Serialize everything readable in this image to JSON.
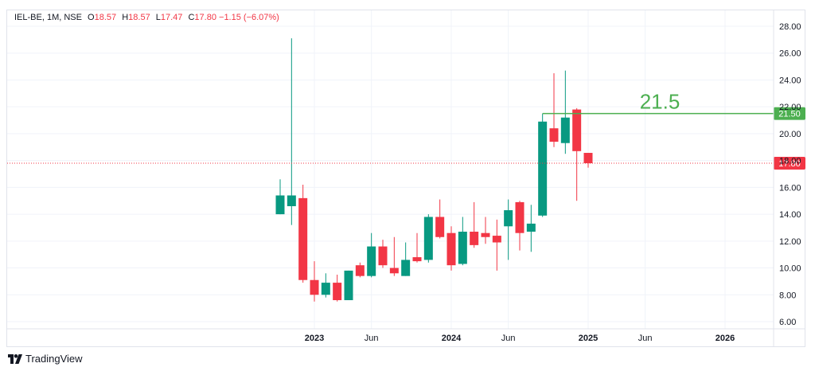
{
  "legend": {
    "symbol": "IEL-BE, 1M, NSE",
    "o_label": "O",
    "o_value": "18.57",
    "h_label": "H",
    "h_value": "18.57",
    "l_label": "L",
    "l_value": "17.47",
    "c_label": "C",
    "c_value": "17.80",
    "change": "−1.15 (−6.07%)"
  },
  "brand": {
    "name": "TradingView"
  },
  "colors": {
    "up": "#089981",
    "down": "#f23645",
    "hline": "#4caf50",
    "grid": "#f0f3fa",
    "price_line": "#f23645"
  },
  "chart_data": {
    "type": "candlestick",
    "y_ticks": [
      "28.00",
      "26.00",
      "24.00",
      "22.00",
      "20.00",
      "18.00",
      "16.00",
      "14.00",
      "12.00",
      "10.00",
      "8.00",
      "6.00"
    ],
    "ylim": [
      5.5,
      28.5
    ],
    "x_ticks": [
      {
        "label": "2023",
        "date": "2023-01",
        "bold": true
      },
      {
        "label": "Jun",
        "date": "2023-06",
        "bold": false
      },
      {
        "label": "2024",
        "date": "2024-01",
        "bold": true
      },
      {
        "label": "Jun",
        "date": "2024-06",
        "bold": false
      },
      {
        "label": "2025",
        "date": "2025-01",
        "bold": true
      },
      {
        "label": "Jun",
        "date": "2025-06",
        "bold": false
      },
      {
        "label": "2026",
        "date": "2026-01",
        "bold": true
      }
    ],
    "candles": [
      {
        "date": "2022-10",
        "o": 14.0,
        "h": 16.6,
        "l": 14.0,
        "c": 15.4
      },
      {
        "date": "2022-11",
        "o": 14.6,
        "h": 27.1,
        "l": 13.2,
        "c": 15.4
      },
      {
        "date": "2022-12",
        "o": 15.2,
        "h": 16.2,
        "l": 8.9,
        "c": 9.1
      },
      {
        "date": "2023-01",
        "o": 9.1,
        "h": 10.5,
        "l": 7.5,
        "c": 8.0
      },
      {
        "date": "2023-02",
        "o": 8.0,
        "h": 9.6,
        "l": 7.8,
        "c": 8.9
      },
      {
        "date": "2023-03",
        "o": 8.9,
        "h": 9.5,
        "l": 7.5,
        "c": 7.6
      },
      {
        "date": "2023-04",
        "o": 7.6,
        "h": 9.8,
        "l": 7.6,
        "c": 9.8
      },
      {
        "date": "2023-05",
        "o": 10.2,
        "h": 10.4,
        "l": 9.3,
        "c": 9.4
      },
      {
        "date": "2023-06",
        "o": 9.4,
        "h": 12.6,
        "l": 9.3,
        "c": 11.6
      },
      {
        "date": "2023-07",
        "o": 11.6,
        "h": 12.1,
        "l": 10.0,
        "c": 10.2
      },
      {
        "date": "2023-08",
        "o": 10.0,
        "h": 12.3,
        "l": 9.4,
        "c": 9.6
      },
      {
        "date": "2023-09",
        "o": 9.4,
        "h": 11.9,
        "l": 9.4,
        "c": 10.6
      },
      {
        "date": "2023-10",
        "o": 10.8,
        "h": 12.6,
        "l": 10.4,
        "c": 10.5
      },
      {
        "date": "2023-11",
        "o": 10.6,
        "h": 14.0,
        "l": 10.4,
        "c": 13.8
      },
      {
        "date": "2023-12",
        "o": 13.8,
        "h": 15.1,
        "l": 12.2,
        "c": 12.3
      },
      {
        "date": "2024-01",
        "o": 12.6,
        "h": 13.1,
        "l": 9.8,
        "c": 10.2
      },
      {
        "date": "2024-02",
        "o": 10.3,
        "h": 13.8,
        "l": 10.2,
        "c": 12.7
      },
      {
        "date": "2024-03",
        "o": 12.7,
        "h": 14.9,
        "l": 11.5,
        "c": 11.7
      },
      {
        "date": "2024-04",
        "o": 12.6,
        "h": 13.8,
        "l": 11.8,
        "c": 12.3
      },
      {
        "date": "2024-05",
        "o": 12.4,
        "h": 13.6,
        "l": 9.8,
        "c": 11.9
      },
      {
        "date": "2024-06",
        "o": 13.1,
        "h": 15.1,
        "l": 10.6,
        "c": 14.3
      },
      {
        "date": "2024-07",
        "o": 14.9,
        "h": 15.0,
        "l": 11.3,
        "c": 12.6
      },
      {
        "date": "2024-08",
        "o": 12.7,
        "h": 14.7,
        "l": 11.2,
        "c": 13.3
      },
      {
        "date": "2024-09",
        "o": 13.9,
        "h": 21.5,
        "l": 13.8,
        "c": 20.9
      },
      {
        "date": "2024-10",
        "o": 20.4,
        "h": 24.5,
        "l": 19.0,
        "c": 19.4
      },
      {
        "date": "2024-11",
        "o": 19.3,
        "h": 24.7,
        "l": 18.5,
        "c": 21.2
      },
      {
        "date": "2024-12",
        "o": 21.8,
        "h": 21.9,
        "l": 15.0,
        "c": 18.7
      },
      {
        "date": "2025-01",
        "o": 18.57,
        "h": 18.57,
        "l": 17.47,
        "c": 17.8
      }
    ],
    "last_price": "17.80",
    "horizontal_line": {
      "value": 21.5,
      "label": "21.5",
      "axis_label": "21.50",
      "start": "2024-09"
    }
  }
}
